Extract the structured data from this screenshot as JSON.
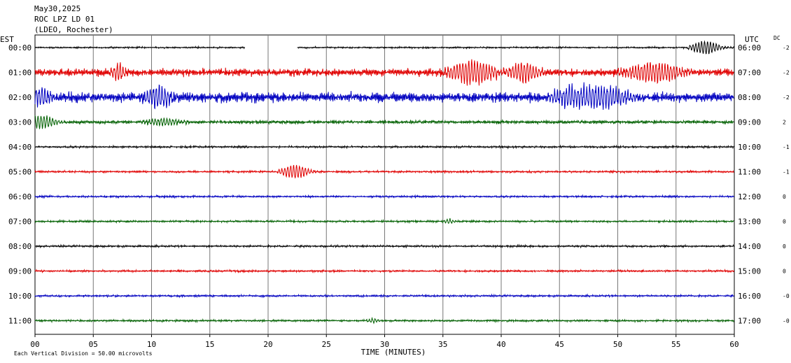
{
  "header": {
    "date": "May30,2025",
    "station": "ROC LPZ LD 01",
    "network": "(LDEO, Rochester)"
  },
  "labels": {
    "left_tz": "EST",
    "right_tz": "UTC",
    "dc": "DC",
    "x_axis": "TIME (MINUTES)",
    "footer": "Each Vertical Division =   50.00 microvolts"
  },
  "colors": {
    "trace_cycle": [
      "#000000",
      "#e00000",
      "#0000c0",
      "#006000"
    ],
    "grid": "#000000"
  },
  "chart_data": {
    "type": "line",
    "description_of_series": "helicorder rows, one per hour",
    "xlabel": "TIME (MINUTES)",
    "xlim": [
      0,
      60
    ],
    "xticks": [
      "00",
      "05",
      "10",
      "15",
      "20",
      "25",
      "30",
      "35",
      "40",
      "45",
      "50",
      "55",
      "60"
    ],
    "rows": [
      {
        "est": "00:00",
        "utc": "06:00",
        "dc": "-2",
        "color": "#000000",
        "amp": 1.0,
        "gaps": [
          [
            18.0,
            22.5
          ]
        ],
        "events": [
          {
            "t": 57.5,
            "dur": 1.5,
            "amp": 9
          }
        ]
      },
      {
        "est": "01:00",
        "utc": "07:00",
        "dc": "-2",
        "color": "#e00000",
        "amp": 4.5,
        "gaps": [],
        "events": [
          {
            "t": 7.2,
            "dur": 0.8,
            "amp": 10
          },
          {
            "t": 37.5,
            "dur": 2.5,
            "amp": 16
          },
          {
            "t": 42,
            "dur": 1.5,
            "amp": 13
          },
          {
            "t": 53,
            "dur": 3,
            "amp": 13
          }
        ]
      },
      {
        "est": "02:00",
        "utc": "08:00",
        "dc": "-2",
        "color": "#0000c0",
        "amp": 6.0,
        "gaps": [],
        "events": [
          {
            "t": 0.5,
            "dur": 1.2,
            "amp": 12
          },
          {
            "t": 10.5,
            "dur": 1.5,
            "amp": 13
          },
          {
            "t": 46,
            "dur": 2,
            "amp": 12
          },
          {
            "t": 49,
            "dur": 2.5,
            "amp": 13
          }
        ]
      },
      {
        "est": "03:00",
        "utc": "09:00",
        "dc": "2",
        "color": "#006000",
        "amp": 2.0,
        "gaps": [],
        "events": [
          {
            "t": 0.5,
            "dur": 1.5,
            "amp": 9
          },
          {
            "t": 11,
            "dur": 2,
            "amp": 5
          }
        ]
      },
      {
        "est": "04:00",
        "utc": "10:00",
        "dc": "-1",
        "color": "#000000",
        "amp": 1.2,
        "gaps": [],
        "events": []
      },
      {
        "est": "05:00",
        "utc": "11:00",
        "dc": "-1",
        "color": "#e00000",
        "amp": 1.2,
        "gaps": [],
        "events": [
          {
            "t": 22.3,
            "dur": 1.5,
            "amp": 9
          }
        ]
      },
      {
        "est": "06:00",
        "utc": "12:00",
        "dc": "0",
        "color": "#0000c0",
        "amp": 1.2,
        "gaps": [],
        "events": []
      },
      {
        "est": "07:00",
        "utc": "13:00",
        "dc": "0",
        "color": "#006000",
        "amp": 1.2,
        "gaps": [],
        "events": [
          {
            "t": 35.5,
            "dur": 0.6,
            "amp": 3
          }
        ]
      },
      {
        "est": "08:00",
        "utc": "14:00",
        "dc": "0",
        "color": "#000000",
        "amp": 1.2,
        "gaps": [],
        "events": []
      },
      {
        "est": "09:00",
        "utc": "15:00",
        "dc": "0",
        "color": "#e00000",
        "amp": 1.2,
        "gaps": [],
        "events": []
      },
      {
        "est": "10:00",
        "utc": "16:00",
        "dc": "-0",
        "color": "#0000c0",
        "amp": 1.2,
        "gaps": [],
        "events": []
      },
      {
        "est": "11:00",
        "utc": "17:00",
        "dc": "-0",
        "color": "#006000",
        "amp": 1.2,
        "gaps": [],
        "events": [
          {
            "t": 29,
            "dur": 0.6,
            "amp": 3
          }
        ]
      }
    ]
  }
}
